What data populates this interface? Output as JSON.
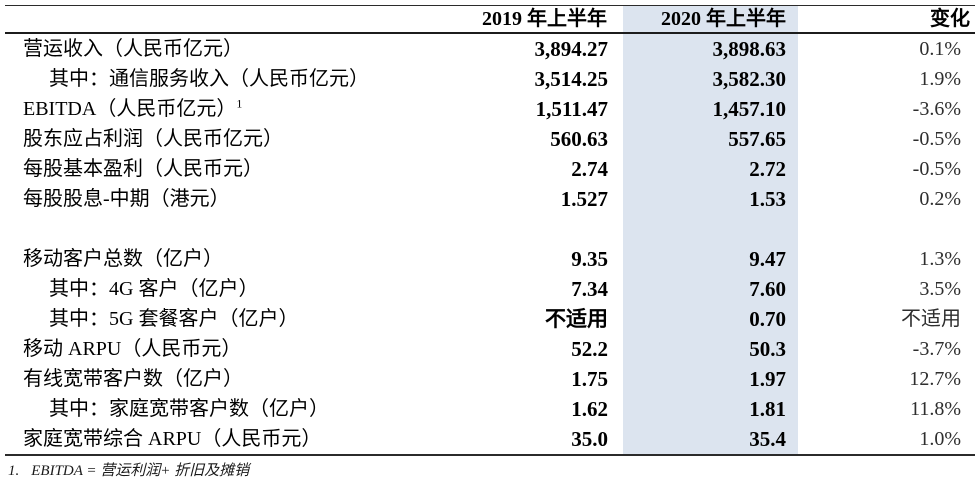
{
  "colors": {
    "highlight_column": "#dce4ef",
    "rule_lines": "#2b2b2b",
    "text": "#000000"
  },
  "table": {
    "header": {
      "col_2019": "2019 年上半年",
      "col_2020": "2020 年上半年",
      "col_change": "变化"
    },
    "rows": [
      {
        "label": "营运收入（人民币亿元）",
        "indent": false,
        "v2019": "3,894.27",
        "v2020": "3,898.63",
        "change": "0.1%"
      },
      {
        "label": "其中：通信服务收入（人民币亿元）",
        "indent": true,
        "v2019": "3,514.25",
        "v2020": "3,582.30",
        "change": "1.9%"
      },
      {
        "label": "EBITDA（人民币亿元）",
        "sup": "1",
        "indent": false,
        "v2019": "1,511.47",
        "v2020": "1,457.10",
        "change": "-3.6%"
      },
      {
        "label": "股东应占利润（人民币亿元）",
        "indent": false,
        "v2019": "560.63",
        "v2020": "557.65",
        "change": "-0.5%"
      },
      {
        "label": "每股基本盈利（人民币元）",
        "indent": false,
        "v2019": "2.74",
        "v2020": "2.72",
        "change": "-0.5%"
      },
      {
        "label": "每股股息-中期（港元）",
        "indent": false,
        "v2019": "1.527",
        "v2020": "1.53",
        "change": "0.2%"
      },
      {
        "blank": true
      },
      {
        "label": "移动客户总数（亿户）",
        "indent": false,
        "v2019": "9.35",
        "v2020": "9.47",
        "change": "1.3%"
      },
      {
        "label": "其中：4G 客户（亿户）",
        "indent": true,
        "v2019": "7.34",
        "v2020": "7.60",
        "change": "3.5%"
      },
      {
        "label": "其中：5G 套餐客户（亿户）",
        "indent": true,
        "v2019": "不适用",
        "v2020": "0.70",
        "change": "不适用"
      },
      {
        "label": "移动 ARPU（人民币元）",
        "indent": false,
        "v2019": "52.2",
        "v2020": "50.3",
        "change": "-3.7%"
      },
      {
        "label": "有线宽带客户数（亿户）",
        "indent": false,
        "v2019": "1.75",
        "v2020": "1.97",
        "change": "12.7%"
      },
      {
        "label": "其中：家庭宽带客户数（亿户）",
        "indent": true,
        "v2019": "1.62",
        "v2020": "1.81",
        "change": "11.8%"
      },
      {
        "label": "家庭宽带综合 ARPU（人民币元）",
        "indent": false,
        "v2019": "35.0",
        "v2020": "35.4",
        "change": "1.0%"
      }
    ],
    "footnote": {
      "marker": "1.",
      "text": "EBITDA = 营运利润+ 折旧及摊销"
    }
  }
}
